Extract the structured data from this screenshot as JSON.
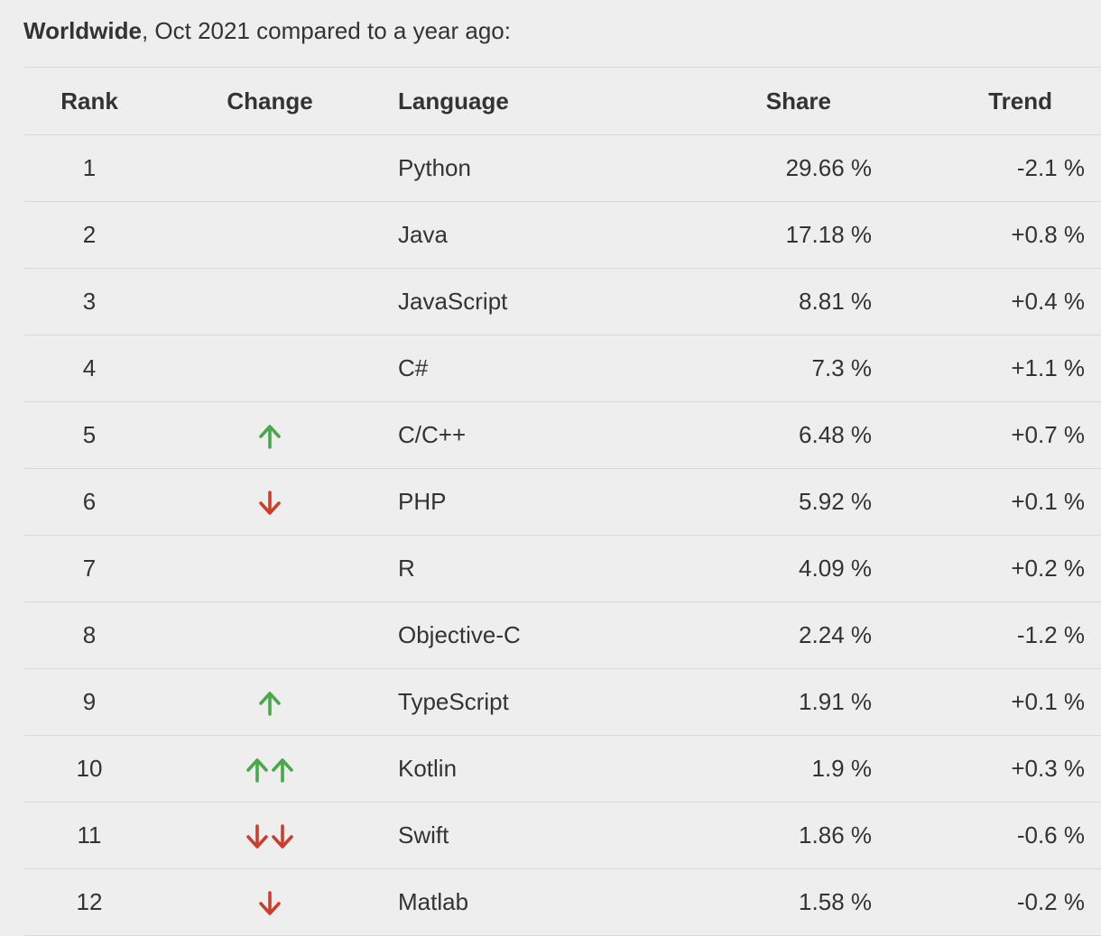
{
  "caption": {
    "region": "Worldwide",
    "rest": ", Oct 2021 compared to a year ago:"
  },
  "headers": {
    "rank": "Rank",
    "change": "Change",
    "language": "Language",
    "share": "Share",
    "trend": "Trend"
  },
  "colors": {
    "up": "#4ba74b",
    "down": "#c94030"
  },
  "rows": [
    {
      "rank": "1",
      "change": [],
      "language": "Python",
      "share": "29.66 %",
      "trend": "-2.1 %"
    },
    {
      "rank": "2",
      "change": [],
      "language": "Java",
      "share": "17.18 %",
      "trend": "+0.8 %"
    },
    {
      "rank": "3",
      "change": [],
      "language": "JavaScript",
      "share": "8.81 %",
      "trend": "+0.4 %"
    },
    {
      "rank": "4",
      "change": [],
      "language": "C#",
      "share": "7.3 %",
      "trend": "+1.1 %"
    },
    {
      "rank": "5",
      "change": [
        "up"
      ],
      "language": "C/C++",
      "share": "6.48 %",
      "trend": "+0.7 %"
    },
    {
      "rank": "6",
      "change": [
        "down"
      ],
      "language": "PHP",
      "share": "5.92 %",
      "trend": "+0.1 %"
    },
    {
      "rank": "7",
      "change": [],
      "language": "R",
      "share": "4.09 %",
      "trend": "+0.2 %"
    },
    {
      "rank": "8",
      "change": [],
      "language": "Objective-C",
      "share": "2.24 %",
      "trend": "-1.2 %"
    },
    {
      "rank": "9",
      "change": [
        "up"
      ],
      "language": "TypeScript",
      "share": "1.91 %",
      "trend": "+0.1 %"
    },
    {
      "rank": "10",
      "change": [
        "up",
        "up"
      ],
      "language": "Kotlin",
      "share": "1.9 %",
      "trend": "+0.3 %"
    },
    {
      "rank": "11",
      "change": [
        "down",
        "down"
      ],
      "language": "Swift",
      "share": "1.86 %",
      "trend": "-0.6 %"
    },
    {
      "rank": "12",
      "change": [
        "down"
      ],
      "language": "Matlab",
      "share": "1.58 %",
      "trend": "-0.2 %"
    }
  ]
}
